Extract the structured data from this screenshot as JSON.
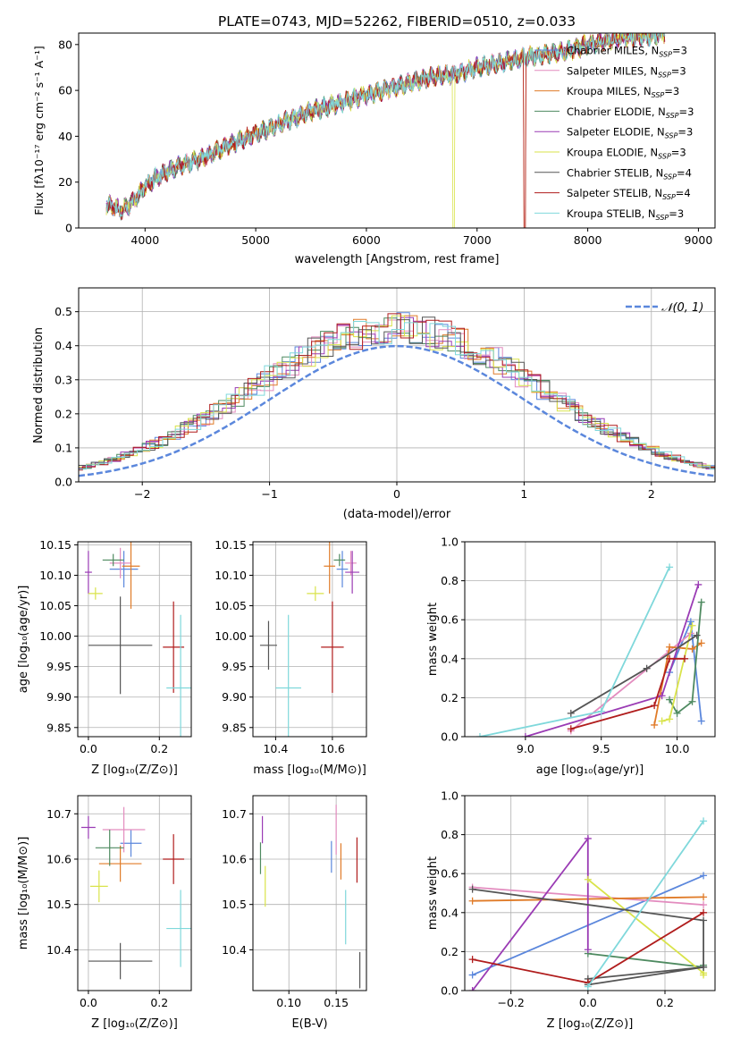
{
  "colors": [
    "#5b87dc",
    "#e38cbf",
    "#e07b28",
    "#4e8a60",
    "#9a3bb4",
    "#d9e34a",
    "#555555",
    "#b01c1c",
    "#7fd8db"
  ],
  "chart_data": [
    {
      "id": "spectrum",
      "type": "line",
      "title": "PLATE=0743, MJD=52262, FIBERID=0510, z=0.033",
      "xlabel": "wavelength [Angstrom, rest frame]",
      "ylabel": "Flux [fλ10⁻¹⁷ erg cm⁻² s⁻¹ A⁻¹]",
      "xlim": [
        3400,
        9150
      ],
      "ylim": [
        0,
        85
      ],
      "xticks": [
        4000,
        5000,
        6000,
        7000,
        8000,
        9000
      ],
      "yticks": [
        0,
        20,
        40,
        60,
        80
      ],
      "legend": "upper-right",
      "series": [
        {
          "name": "Chabrier MILES, N_SSP=3"
        },
        {
          "name": "Salpeter MILES, N_SSP=3"
        },
        {
          "name": "Kroupa MILES, N_SSP=3"
        },
        {
          "name": "Chabrier ELODIE, N_SSP=3"
        },
        {
          "name": "Salpeter ELODIE, N_SSP=3"
        },
        {
          "name": "Kroupa ELODIE, N_SSP=3"
        },
        {
          "name": "Chabrier STELIB, N_SSP=4"
        },
        {
          "name": "Salpeter STELIB, N_SSP=4"
        },
        {
          "name": "Kroupa STELIB, N_SSP=3"
        }
      ],
      "continuum": {
        "x": [
          3650,
          3800,
          3900,
          4000,
          4100,
          4300,
          4500,
          4800,
          5000,
          5200,
          5500,
          5800,
          6000,
          6300,
          6600,
          6800,
          7000,
          7300,
          7500,
          7800,
          8000,
          8300,
          8600,
          8700
        ],
        "y": [
          10,
          8,
          12,
          18,
          22,
          27,
          30,
          37,
          41,
          45,
          51,
          55,
          58,
          62,
          66,
          67,
          70,
          73,
          75,
          77,
          80,
          83,
          84,
          85
        ]
      }
    },
    {
      "id": "residuals",
      "type": "line",
      "xlabel": "(data-model)/error",
      "ylabel": "Normed distribution",
      "xlim": [
        -2.5,
        2.5
      ],
      "ylim": [
        0,
        0.57
      ],
      "xticks": [
        -2,
        -1,
        0,
        1,
        2
      ],
      "yticks": [
        0.0,
        0.1,
        0.2,
        0.3,
        0.4,
        0.5
      ],
      "grid": true,
      "legend": "upper-right",
      "reference_curve": "𝒩(0, 1)"
    },
    {
      "id": "age-vs-Z",
      "type": "scatter",
      "xlabel": "Z [log₁₀(Z/Z⊙)]",
      "ylabel": "age  [log₁₀(age/yr)]",
      "xlim": [
        -0.03,
        0.29
      ],
      "ylim": [
        9.835,
        10.155
      ],
      "xticks": [
        0.0,
        0.2
      ],
      "yticks": [
        9.85,
        9.9,
        9.95,
        10.0,
        10.05,
        10.1,
        10.15
      ],
      "grid": true,
      "points": [
        {
          "x": 0.1,
          "y": 10.11,
          "dx": 0.04,
          "dy": 0.03
        },
        {
          "x": 0.09,
          "y": 10.12,
          "dx": 0.03,
          "dy": 0.025
        },
        {
          "x": 0.12,
          "y": 10.115,
          "dx": 0.025,
          "dy": 0.07
        },
        {
          "x": 0.07,
          "y": 10.125,
          "dx": 0.03,
          "dy": 0.01
        },
        {
          "x": 0.0,
          "y": 10.105,
          "dx": 0.01,
          "dy": 0.035
        },
        {
          "x": 0.02,
          "y": 10.07,
          "dx": 0.02,
          "dy": 0.01
        },
        {
          "x": 0.09,
          "y": 9.985,
          "dx": 0.09,
          "dy": 0.08
        },
        {
          "x": 0.24,
          "y": 9.982,
          "dx": 0.03,
          "dy": 0.075
        },
        {
          "x": 0.26,
          "y": 9.915,
          "dx": 0.04,
          "dy": 0.12
        }
      ]
    },
    {
      "id": "age-vs-mass",
      "type": "scatter",
      "xlabel": "mass [log₁₀(M/M⊙)]",
      "xlim": [
        10.32,
        10.72
      ],
      "ylim": [
        9.835,
        10.155
      ],
      "xticks": [
        10.4,
        10.6
      ],
      "yticks": [
        9.85,
        9.9,
        9.95,
        10.0,
        10.05,
        10.1,
        10.15
      ],
      "grid": true,
      "points": [
        {
          "x": 10.635,
          "y": 10.11,
          "dx": 0.02,
          "dy": 0.03
        },
        {
          "x": 10.665,
          "y": 10.12,
          "dx": 0.02,
          "dy": 0.02
        },
        {
          "x": 10.59,
          "y": 10.115,
          "dx": 0.02,
          "dy": 0.045
        },
        {
          "x": 10.625,
          "y": 10.125,
          "dx": 0.02,
          "dy": 0.01
        },
        {
          "x": 10.67,
          "y": 10.105,
          "dx": 0.025,
          "dy": 0.035
        },
        {
          "x": 10.54,
          "y": 10.07,
          "dx": 0.03,
          "dy": 0.012
        },
        {
          "x": 10.375,
          "y": 9.985,
          "dx": 0.03,
          "dy": 0.04
        },
        {
          "x": 10.6,
          "y": 9.982,
          "dx": 0.04,
          "dy": 0.075
        },
        {
          "x": 10.445,
          "y": 9.915,
          "dx": 0.045,
          "dy": 0.12
        }
      ]
    },
    {
      "id": "weight-vs-age",
      "type": "line",
      "xlabel": "age  [log₁₀(age/yr)]",
      "ylabel": "mass weight",
      "xlim": [
        8.6,
        10.25
      ],
      "ylim": [
        0.0,
        1.0
      ],
      "xticks": [
        9.0,
        9.5,
        10.0
      ],
      "yticks": [
        0.0,
        0.2,
        0.4,
        0.6,
        0.8,
        1.0
      ],
      "grid": true,
      "series": [
        {
          "x": [
            9.95,
            10.09,
            10.16
          ],
          "y": [
            0.33,
            0.59,
            0.08
          ]
        },
        {
          "x": [
            9.3,
            9.95,
            10.09
          ],
          "y": [
            0.03,
            0.44,
            0.53
          ]
        },
        {
          "x": [
            9.85,
            9.95,
            10.1,
            10.16
          ],
          "y": [
            0.06,
            0.46,
            0.45,
            0.48
          ]
        },
        {
          "x": [
            9.95,
            10.0,
            10.1,
            10.16
          ],
          "y": [
            0.19,
            0.12,
            0.18,
            0.69
          ]
        },
        {
          "x": [
            9.0,
            9.9,
            10.14
          ],
          "y": [
            0.0,
            0.21,
            0.78
          ]
        },
        {
          "x": [
            9.9,
            9.95,
            10.1
          ],
          "y": [
            0.08,
            0.09,
            0.57
          ]
        },
        {
          "x": [
            9.3,
            9.8,
            10.13
          ],
          "y": [
            0.12,
            0.35,
            0.52
          ]
        },
        {
          "x": [
            9.3,
            9.85,
            9.95,
            10.05
          ],
          "y": [
            0.04,
            0.16,
            0.4,
            0.4
          ]
        },
        {
          "x": [
            8.7,
            9.5,
            9.95
          ],
          "y": [
            0.0,
            0.13,
            0.87
          ]
        }
      ]
    },
    {
      "id": "mass-vs-Z",
      "type": "scatter",
      "xlabel": "Z [log₁₀(Z/Z⊙)]",
      "ylabel": "mass [log₁₀(M/M⊙)]",
      "xlim": [
        -0.03,
        0.29
      ],
      "ylim": [
        10.31,
        10.74
      ],
      "xticks": [
        0.0,
        0.2
      ],
      "yticks": [
        10.4,
        10.5,
        10.6,
        10.7
      ],
      "grid": true,
      "points": [
        {
          "x": 0.12,
          "y": 10.635,
          "dx": 0.03,
          "dy": 0.03
        },
        {
          "x": 0.1,
          "y": 10.665,
          "dx": 0.06,
          "dy": 0.05
        },
        {
          "x": 0.09,
          "y": 10.59,
          "dx": 0.06,
          "dy": 0.04
        },
        {
          "x": 0.06,
          "y": 10.625,
          "dx": 0.04,
          "dy": 0.04
        },
        {
          "x": 0.0,
          "y": 10.67,
          "dx": 0.02,
          "dy": 0.025
        },
        {
          "x": 0.03,
          "y": 10.54,
          "dx": 0.025,
          "dy": 0.035
        },
        {
          "x": 0.09,
          "y": 10.375,
          "dx": 0.09,
          "dy": 0.04
        },
        {
          "x": 0.24,
          "y": 10.6,
          "dx": 0.03,
          "dy": 0.055
        },
        {
          "x": 0.26,
          "y": 10.447,
          "dx": 0.04,
          "dy": 0.085
        }
      ]
    },
    {
      "id": "mass-vs-EBV",
      "type": "scatter",
      "xlabel": "E(B-V)",
      "xlim": [
        0.062,
        0.182
      ],
      "ylim": [
        10.31,
        10.74
      ],
      "xticks": [
        0.1,
        0.15
      ],
      "yticks": [
        10.4,
        10.5,
        10.6,
        10.7
      ],
      "grid": true,
      "points": [
        {
          "x": 0.145,
          "y": 10.605,
          "dx": 0.0,
          "dy": 0.035
        },
        {
          "x": 0.15,
          "y": 10.665,
          "dx": 0.0,
          "dy": 0.055
        },
        {
          "x": 0.155,
          "y": 10.595,
          "dx": 0.0,
          "dy": 0.04
        },
        {
          "x": 0.07,
          "y": 10.602,
          "dx": 0.0,
          "dy": 0.035
        },
        {
          "x": 0.072,
          "y": 10.665,
          "dx": 0.0,
          "dy": 0.03
        },
        {
          "x": 0.075,
          "y": 10.54,
          "dx": 0.0,
          "dy": 0.045
        },
        {
          "x": 0.175,
          "y": 10.355,
          "dx": 0.0,
          "dy": 0.04
        },
        {
          "x": 0.172,
          "y": 10.598,
          "dx": 0.0,
          "dy": 0.05
        },
        {
          "x": 0.16,
          "y": 10.472,
          "dx": 0.0,
          "dy": 0.06
        }
      ]
    },
    {
      "id": "weight-vs-Z",
      "type": "line",
      "xlabel": "Z [log₁₀(Z/Z⊙)]",
      "ylabel": "mass weight",
      "xlim": [
        -0.32,
        0.33
      ],
      "ylim": [
        0.0,
        1.0
      ],
      "xticks": [
        -0.2,
        0.0,
        0.2
      ],
      "yticks": [
        0.0,
        0.2,
        0.4,
        0.6,
        0.8,
        1.0
      ],
      "grid": true,
      "series": [
        {
          "x": [
            -0.3,
            0.3
          ],
          "y": [
            0.08,
            0.59
          ]
        },
        {
          "x": [
            -0.3,
            0.3
          ],
          "y": [
            0.53,
            0.44
          ]
        },
        {
          "x": [
            -0.3,
            0.3
          ],
          "y": [
            0.46,
            0.48
          ]
        },
        {
          "x": [
            0.0,
            0.3,
            0.3
          ],
          "y": [
            0.19,
            0.12,
            0.13
          ]
        },
        {
          "x": [
            -0.3,
            0.0,
            0.0
          ],
          "y": [
            0.0,
            0.78,
            0.21
          ]
        },
        {
          "x": [
            0.0,
            0.3,
            0.3
          ],
          "y": [
            0.57,
            0.09,
            0.08
          ]
        },
        {
          "x": [
            -0.3,
            0.3,
            0.3,
            0.0,
            0.0,
            0.3
          ],
          "y": [
            0.52,
            0.36,
            0.12,
            0.06,
            0.03,
            0.12
          ]
        },
        {
          "x": [
            -0.3,
            0.0,
            0.3
          ],
          "y": [
            0.16,
            0.04,
            0.4
          ]
        },
        {
          "x": [
            0.0,
            0.3
          ],
          "y": [
            0.02,
            0.87
          ]
        }
      ]
    }
  ]
}
